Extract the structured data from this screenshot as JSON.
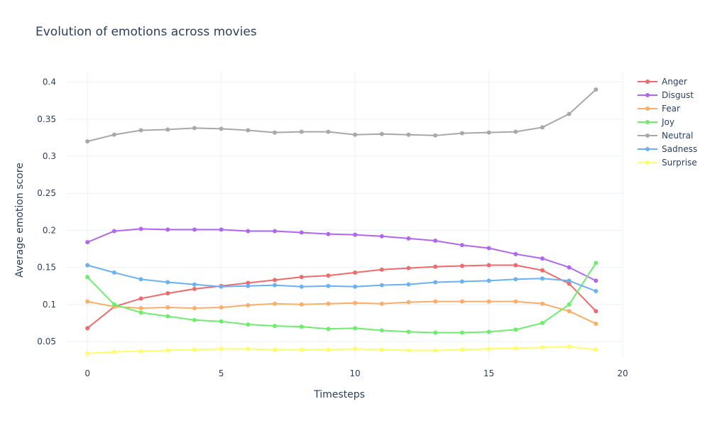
{
  "chart_data": {
    "type": "line",
    "title": "Evolution of emotions across movies",
    "xlabel": "Timesteps",
    "ylabel": "Average emotion score",
    "xlim": [
      -0.8,
      20
    ],
    "ylim": [
      0.027,
      0.415
    ],
    "xticks": [
      0,
      5,
      10,
      15,
      20
    ],
    "yticks": [
      0.05,
      0.1,
      0.15,
      0.2,
      0.25,
      0.3,
      0.35,
      0.4
    ],
    "grid": true,
    "legend_position": "top-right",
    "x": [
      0,
      1,
      2,
      3,
      4,
      5,
      6,
      7,
      8,
      9,
      10,
      11,
      12,
      13,
      14,
      15,
      16,
      17,
      18,
      19
    ],
    "series": [
      {
        "name": "Anger",
        "color": "#ef6a6a",
        "values": [
          0.068,
          0.097,
          0.108,
          0.115,
          0.121,
          0.125,
          0.129,
          0.133,
          0.137,
          0.139,
          0.143,
          0.147,
          0.149,
          0.151,
          0.152,
          0.153,
          0.153,
          0.146,
          0.128,
          0.091
        ]
      },
      {
        "name": "Disgust",
        "color": "#b067f0",
        "values": [
          0.184,
          0.199,
          0.202,
          0.201,
          0.201,
          0.201,
          0.199,
          0.199,
          0.197,
          0.195,
          0.194,
          0.192,
          0.189,
          0.186,
          0.18,
          0.176,
          0.168,
          0.162,
          0.15,
          0.132
        ]
      },
      {
        "name": "Fear",
        "color": "#fcad66",
        "values": [
          0.104,
          0.097,
          0.095,
          0.096,
          0.095,
          0.096,
          0.099,
          0.101,
          0.1,
          0.101,
          0.102,
          0.101,
          0.103,
          0.104,
          0.104,
          0.104,
          0.104,
          0.101,
          0.091,
          0.074
        ]
      },
      {
        "name": "Joy",
        "color": "#6cee6c",
        "values": [
          0.137,
          0.1,
          0.089,
          0.084,
          0.079,
          0.077,
          0.073,
          0.071,
          0.07,
          0.067,
          0.068,
          0.065,
          0.063,
          0.062,
          0.062,
          0.063,
          0.066,
          0.075,
          0.1,
          0.156
        ]
      },
      {
        "name": "Neutral",
        "color": "#a8a8a8",
        "values": [
          0.32,
          0.329,
          0.335,
          0.336,
          0.338,
          0.337,
          0.335,
          0.332,
          0.333,
          0.333,
          0.329,
          0.33,
          0.329,
          0.328,
          0.331,
          0.332,
          0.333,
          0.339,
          0.357,
          0.39
        ]
      },
      {
        "name": "Sadness",
        "color": "#6ab0f4",
        "values": [
          0.153,
          0.143,
          0.134,
          0.13,
          0.127,
          0.124,
          0.125,
          0.126,
          0.124,
          0.125,
          0.124,
          0.126,
          0.127,
          0.13,
          0.131,
          0.132,
          0.134,
          0.135,
          0.132,
          0.118
        ]
      },
      {
        "name": "Surprise",
        "color": "#fdfd6a",
        "values": [
          0.034,
          0.036,
          0.037,
          0.038,
          0.039,
          0.04,
          0.04,
          0.039,
          0.039,
          0.039,
          0.04,
          0.039,
          0.038,
          0.038,
          0.039,
          0.04,
          0.041,
          0.042,
          0.043,
          0.039
        ]
      }
    ]
  }
}
